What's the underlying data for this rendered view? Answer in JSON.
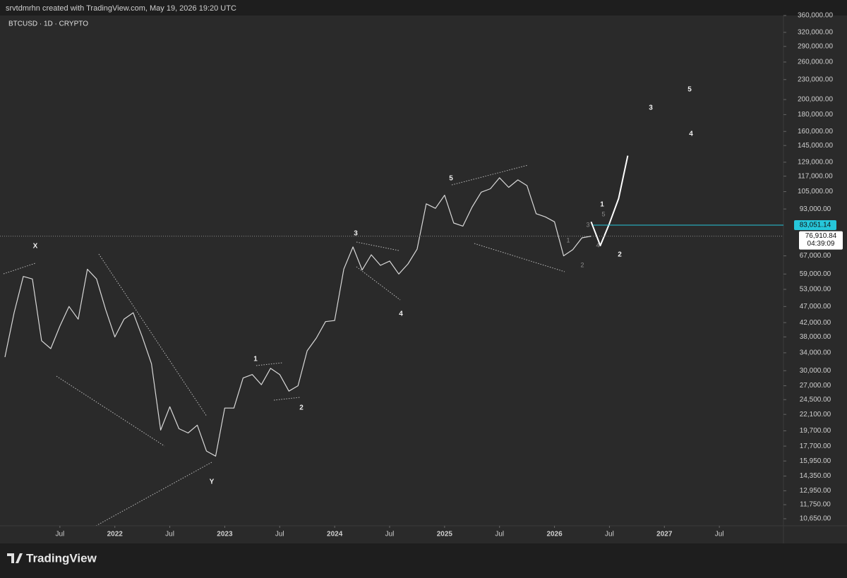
{
  "header": "srvtdmrhn created with TradingView.com, May 19, 2026 19:20 UTC",
  "footer": "TradingView",
  "chart_data": {
    "type": "line",
    "title": "BTCUSD · 1D · CRYPTO",
    "log_scale": true,
    "xlim": [
      "2021-01",
      "2028-01"
    ],
    "xticks": [
      {
        "value": "2021-07",
        "label": "Jul"
      },
      {
        "value": "2022-01",
        "label": "2022"
      },
      {
        "value": "2022-07",
        "label": "Jul"
      },
      {
        "value": "2023-01",
        "label": "2023"
      },
      {
        "value": "2023-07",
        "label": "Jul"
      },
      {
        "value": "2024-01",
        "label": "2024"
      },
      {
        "value": "2024-07",
        "label": "Jul"
      },
      {
        "value": "2025-01",
        "label": "2025"
      },
      {
        "value": "2025-07",
        "label": "Jul"
      },
      {
        "value": "2026-01",
        "label": "2026"
      },
      {
        "value": "2026-07",
        "label": "Jul"
      },
      {
        "value": "2027-01",
        "label": "2027"
      },
      {
        "value": "2027-07",
        "label": "Jul"
      }
    ],
    "ylim": [
      10650,
      360000
    ],
    "yticks": [
      {
        "value": 360000,
        "label": "360,000.00"
      },
      {
        "value": 320000,
        "label": "320,000.00"
      },
      {
        "value": 290000,
        "label": "290,000.00"
      },
      {
        "value": 260000,
        "label": "260,000.00"
      },
      {
        "value": 230000,
        "label": "230,000.00"
      },
      {
        "value": 200000,
        "label": "200,000.00"
      },
      {
        "value": 180000,
        "label": "180,000.00"
      },
      {
        "value": 160000,
        "label": "160,000.00"
      },
      {
        "value": 145000,
        "label": "145,000.00"
      },
      {
        "value": 129000,
        "label": "129,000.00"
      },
      {
        "value": 117000,
        "label": "117,000.00"
      },
      {
        "value": 105000,
        "label": "105,000.00"
      },
      {
        "value": 93000,
        "label": "93,000.00"
      },
      {
        "value": 67000,
        "label": "67,000.00"
      },
      {
        "value": 59000,
        "label": "59,000.00"
      },
      {
        "value": 53000,
        "label": "53,000.00"
      },
      {
        "value": 47000,
        "label": "47,000.00"
      },
      {
        "value": 42000,
        "label": "42,000.00"
      },
      {
        "value": 38000,
        "label": "38,000.00"
      },
      {
        "value": 34000,
        "label": "34,000.00"
      },
      {
        "value": 30000,
        "label": "30,000.00"
      },
      {
        "value": 27000,
        "label": "27,000.00"
      },
      {
        "value": 24500,
        "label": "24,500.00"
      },
      {
        "value": 22100,
        "label": "22,100.00"
      },
      {
        "value": 19700,
        "label": "19,700.00"
      },
      {
        "value": 17700,
        "label": "17,700.00"
      },
      {
        "value": 15950,
        "label": "15,950.00"
      },
      {
        "value": 14350,
        "label": "14,350.00"
      },
      {
        "value": 12950,
        "label": "12,950.00"
      },
      {
        "value": 11750,
        "label": "11,750.00"
      },
      {
        "value": 10650,
        "label": "10,650.00"
      }
    ],
    "series": [
      {
        "color": "#d9d9d9",
        "x": [
          "2021-01",
          "2021-02",
          "2021-03",
          "2021-04",
          "2021-05",
          "2021-06",
          "2021-07",
          "2021-08",
          "2021-09",
          "2021-10",
          "2021-11",
          "2021-12",
          "2022-01",
          "2022-02",
          "2022-03",
          "2022-04",
          "2022-05",
          "2022-06",
          "2022-07",
          "2022-08",
          "2022-09",
          "2022-10",
          "2022-11",
          "2022-12",
          "2023-01",
          "2023-02",
          "2023-03",
          "2023-04",
          "2023-05",
          "2023-06",
          "2023-07",
          "2023-08",
          "2023-09",
          "2023-10",
          "2023-11",
          "2023-12",
          "2024-01",
          "2024-02",
          "2024-03",
          "2024-04",
          "2024-05",
          "2024-06",
          "2024-07",
          "2024-08",
          "2024-09",
          "2024-10",
          "2024-11",
          "2024-12",
          "2025-01",
          "2025-02",
          "2025-03",
          "2025-04",
          "2025-05",
          "2025-06",
          "2025-07",
          "2025-08",
          "2025-09",
          "2025-10",
          "2025-11",
          "2025-12",
          "2026-01",
          "2026-02",
          "2026-03",
          "2026-04",
          "2026-05"
        ],
        "values": [
          33000,
          45000,
          58000,
          57000,
          37000,
          35000,
          41000,
          47000,
          43000,
          61000,
          57000,
          46000,
          38000,
          43000,
          45000,
          38000,
          31500,
          19800,
          23300,
          20000,
          19400,
          20500,
          17100,
          16500,
          23100,
          23100,
          28500,
          29200,
          27200,
          30500,
          29200,
          26000,
          27000,
          34500,
          37700,
          42300,
          42600,
          61100,
          71300,
          60700,
          67500,
          62700,
          64600,
          59000,
          63300,
          70200,
          96400,
          93400,
          102400,
          84300,
          82500,
          94200,
          104600,
          107100,
          115700,
          108200,
          114000,
          109500,
          90000,
          88000,
          85000,
          67000,
          70000,
          76000,
          76910
        ]
      },
      {
        "color": "#ffffff",
        "x": [
          "2026-05",
          "2026-06",
          "2026-07",
          "2026-08",
          "2026-09"
        ],
        "values": [
          85000,
          72000,
          84000,
          100000,
          135000
        ]
      }
    ],
    "price_lines": [
      {
        "value": 83051.14,
        "label": "83,051.14",
        "color": "#26c6da"
      },
      {
        "value": 76910.84,
        "label": "76,910.84",
        "countdown": "04:39:09",
        "color": "#ffffff"
      }
    ],
    "annotations": [
      "X",
      "Y",
      "1",
      "2",
      "3",
      "4",
      "5",
      "1",
      "2",
      "3",
      "5",
      "4",
      "5",
      "3",
      "1",
      "4",
      "2"
    ]
  }
}
